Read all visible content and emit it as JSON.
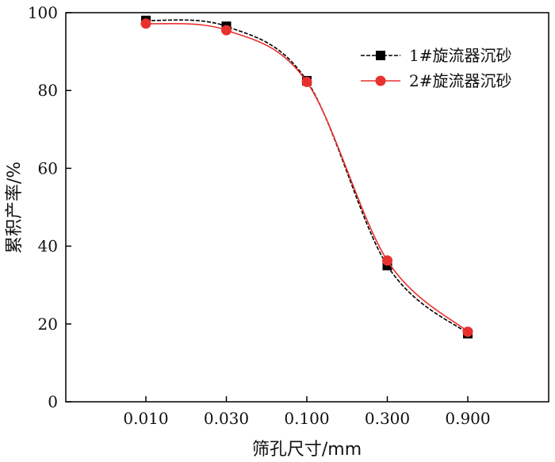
{
  "chart_data": {
    "type": "line",
    "title": "",
    "xlabel": "筛孔尺寸/mm",
    "ylabel": "累积产率/%",
    "categories": [
      "0.010",
      "0.030",
      "0.100",
      "0.300",
      "0.900"
    ],
    "ylim": [
      0,
      100
    ],
    "yticks": [
      "0",
      "20",
      "40",
      "60",
      "80",
      "100"
    ],
    "grid": false,
    "legend_position": "top-right",
    "series": [
      {
        "name": "1#旋流器沉砂",
        "values": [
          98.0,
          96.5,
          82.5,
          35.0,
          17.5
        ],
        "color": "#000000",
        "marker": "square",
        "line_style": "dashed"
      },
      {
        "name": "2#旋流器沉砂",
        "values": [
          97.2,
          95.5,
          82.2,
          36.3,
          18.0
        ],
        "color": "#e8312f",
        "marker": "circle",
        "line_style": "solid"
      }
    ]
  }
}
